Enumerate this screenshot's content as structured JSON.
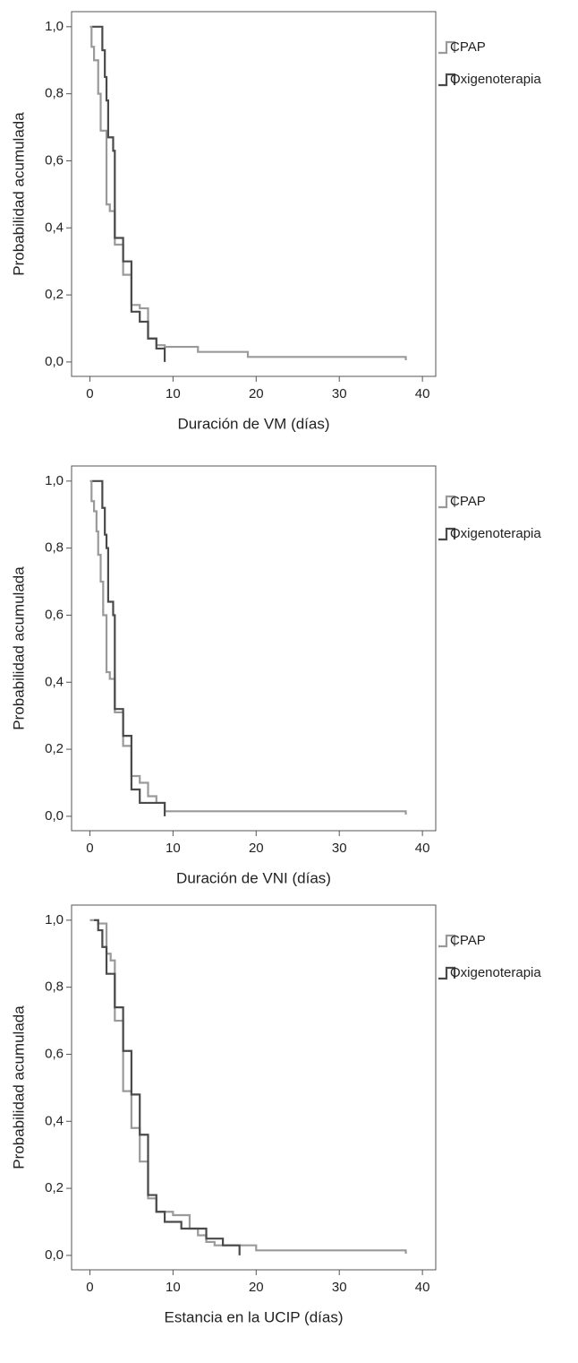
{
  "chart_data": [
    {
      "type": "step",
      "x_label": "Duración de VM (días)",
      "y_label": "Probabilidad acumulada",
      "xlim": [
        -2.2,
        41.6
      ],
      "ylim": [
        -0.043,
        1.045
      ],
      "xticks": [
        0,
        10,
        20,
        30,
        40
      ],
      "yticks": [
        {
          "value": 0,
          "label": "0,0"
        },
        {
          "value": 0.2,
          "label": "0,2"
        },
        {
          "value": 0.4,
          "label": "0,4"
        },
        {
          "value": 0.6,
          "label": "0,6"
        },
        {
          "value": 0.8,
          "label": "0,8"
        },
        {
          "value": 1,
          "label": "1,0"
        }
      ],
      "series": [
        {
          "name": "CPAP",
          "color": "#9a9a9a",
          "x": [
            0,
            0.2,
            0.5,
            1.0,
            1.3,
            2.0,
            2.4,
            3.0,
            4.0,
            5.0,
            6.0,
            7.0,
            8.0,
            9.0,
            13,
            19,
            38
          ],
          "values": [
            1,
            0.94,
            0.9,
            0.8,
            0.69,
            0.47,
            0.45,
            0.35,
            0.26,
            0.17,
            0.16,
            0.07,
            0.05,
            0.045,
            0.03,
            0.015,
            0.005
          ]
        },
        {
          "name": "Oxigenoterapia",
          "color": "#4a4a4a",
          "x": [
            0.3,
            1.5,
            1.8,
            2.0,
            2.2,
            2.8,
            3.0,
            4.0,
            5.0,
            6.0,
            7.0,
            8.0,
            9.0
          ],
          "values": [
            1,
            0.93,
            0.85,
            0.78,
            0.67,
            0.63,
            0.37,
            0.3,
            0.15,
            0.12,
            0.07,
            0.04,
            0
          ]
        }
      ]
    },
    {
      "type": "step",
      "x_label": "Duración de VNI (días)",
      "y_label": "Probabilidad acumulada",
      "xlim": [
        -2.2,
        41.6
      ],
      "ylim": [
        -0.043,
        1.045
      ],
      "xticks": [
        0,
        10,
        20,
        30,
        40
      ],
      "yticks": [
        {
          "value": 0,
          "label": "0,0"
        },
        {
          "value": 0.2,
          "label": "0,2"
        },
        {
          "value": 0.4,
          "label": "0,4"
        },
        {
          "value": 0.6,
          "label": "0,6"
        },
        {
          "value": 0.8,
          "label": "0,8"
        },
        {
          "value": 1,
          "label": "1,0"
        }
      ],
      "series": [
        {
          "name": "CPAP",
          "color": "#9a9a9a",
          "x": [
            0,
            0.2,
            0.5,
            0.8,
            1.0,
            1.3,
            1.6,
            2.0,
            2.4,
            3.0,
            4.0,
            5.0,
            6.0,
            7.0,
            8.0,
            9.0,
            38
          ],
          "values": [
            1,
            0.94,
            0.91,
            0.85,
            0.78,
            0.7,
            0.6,
            0.43,
            0.41,
            0.31,
            0.21,
            0.12,
            0.1,
            0.06,
            0.04,
            0.015,
            0.005
          ]
        },
        {
          "name": "Oxigenoterapia",
          "color": "#4a4a4a",
          "x": [
            0.3,
            1.5,
            1.8,
            2.0,
            2.2,
            2.8,
            3.0,
            4.0,
            5.0,
            6.0,
            9.0
          ],
          "values": [
            1,
            0.92,
            0.84,
            0.8,
            0.64,
            0.6,
            0.32,
            0.24,
            0.08,
            0.04,
            0
          ]
        }
      ]
    },
    {
      "type": "step",
      "x_label": "Estancia en la UCIP (días)",
      "y_label": "Probabilidad acumulada",
      "xlim": [
        -2.2,
        41.6
      ],
      "ylim": [
        -0.043,
        1.045
      ],
      "xticks": [
        0,
        10,
        20,
        30,
        40
      ],
      "yticks": [
        {
          "value": 0,
          "label": "0,0"
        },
        {
          "value": 0.2,
          "label": "0,2"
        },
        {
          "value": 0.4,
          "label": "0,4"
        },
        {
          "value": 0.6,
          "label": "0,6"
        },
        {
          "value": 0.8,
          "label": "0,8"
        },
        {
          "value": 1,
          "label": "1,0"
        }
      ],
      "series": [
        {
          "name": "CPAP",
          "color": "#9a9a9a",
          "x": [
            0,
            1.0,
            2.0,
            2.5,
            3.0,
            4.0,
            5.0,
            6.0,
            7.0,
            8.0,
            10,
            12,
            13,
            14,
            15,
            20,
            38
          ],
          "values": [
            1,
            0.99,
            0.9,
            0.88,
            0.7,
            0.49,
            0.38,
            0.28,
            0.17,
            0.13,
            0.12,
            0.08,
            0.06,
            0.04,
            0.03,
            0.015,
            0.005
          ]
        },
        {
          "name": "Oxigenoterapia",
          "color": "#4a4a4a",
          "x": [
            0.5,
            1.0,
            1.5,
            2.0,
            3.0,
            4.0,
            5.0,
            6.0,
            7.0,
            8.0,
            9.0,
            11,
            14,
            16,
            18
          ],
          "values": [
            1,
            0.97,
            0.92,
            0.84,
            0.74,
            0.61,
            0.48,
            0.36,
            0.18,
            0.13,
            0.1,
            0.08,
            0.05,
            0.03,
            0
          ]
        }
      ]
    }
  ]
}
